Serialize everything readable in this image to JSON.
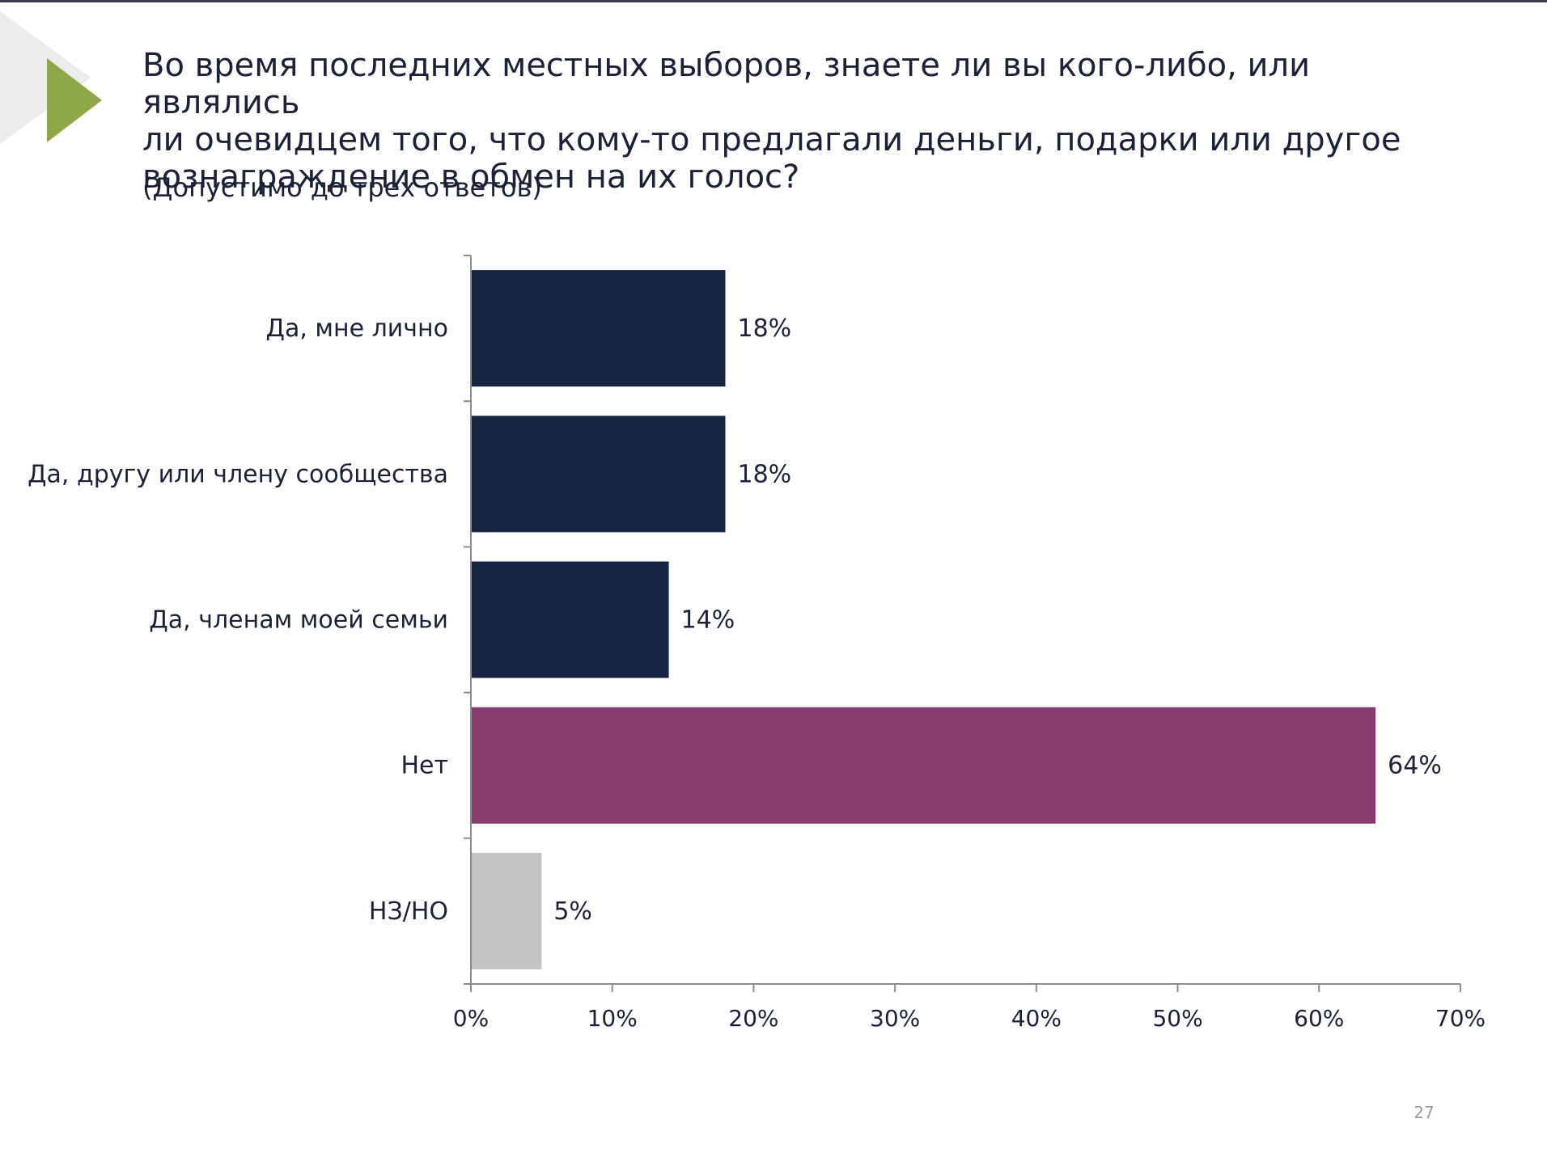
{
  "slide": {
    "title": "Во время последних местных выборов, знаете ли вы кого-либо, или являлись\nли очевидцем того, что кому-то предлагали деньги, подарки или другое\nвознаграждение в обмен на их голос?",
    "subtitle": "(Допустимо до трех ответов)",
    "page_number": "27",
    "accent_color": "#8fa64a"
  },
  "chart_data": {
    "type": "bar",
    "orientation": "horizontal",
    "title": "",
    "xlabel": "",
    "ylabel": "",
    "categories": [
      "Да, мне лично",
      "Да, другу или члену сообщества",
      "Да, членам моей семьи",
      "Нет",
      "НЗ/НО"
    ],
    "values": [
      18,
      18,
      14,
      64,
      5
    ],
    "value_labels": [
      "18%",
      "18%",
      "14%",
      "64%",
      "5%"
    ],
    "bar_colors": [
      "#162541",
      "#162541",
      "#162541",
      "#873a6d",
      "#c4c2c5"
    ],
    "xlim": [
      0,
      70
    ],
    "x_ticks": [
      0,
      10,
      20,
      30,
      40,
      50,
      60,
      70
    ],
    "x_tick_labels": [
      "0%",
      "10%",
      "20%",
      "30%",
      "40%",
      "50%",
      "60%",
      "70%"
    ],
    "grid": false,
    "legend": "none"
  }
}
